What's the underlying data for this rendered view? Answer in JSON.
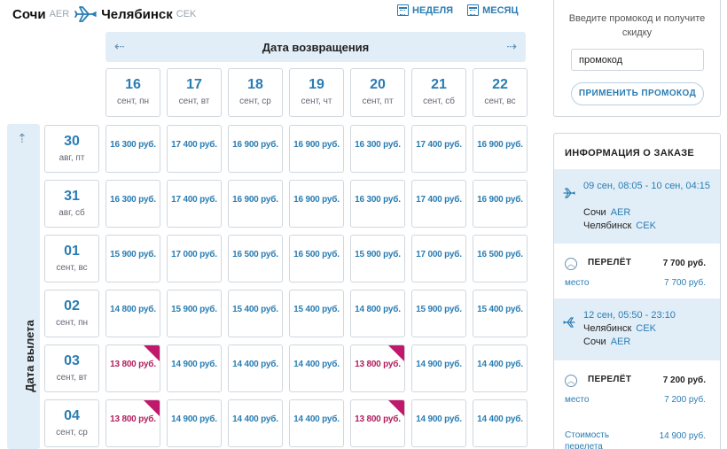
{
  "route": {
    "from_city": "Сочи",
    "from_code": "AER",
    "to_city": "Челябинск",
    "to_code": "CEK"
  },
  "view_switch": {
    "week_label": "НЕДЕЛЯ",
    "month_label": "МЕСЯЦ"
  },
  "return_band": {
    "title": "Дата возвращения",
    "prev_icon": "arrow-left-dotted-icon",
    "next_icon": "arrow-right-dotted-icon"
  },
  "departure_band": {
    "title": "Дата вылета",
    "up_icon": "arrow-up-dotted-icon"
  },
  "return_dates": [
    {
      "day": "16",
      "sub": "сент, пн"
    },
    {
      "day": "17",
      "sub": "сент, вт"
    },
    {
      "day": "18",
      "sub": "сент, ср"
    },
    {
      "day": "19",
      "sub": "сент, чт"
    },
    {
      "day": "20",
      "sub": "сент, пт"
    },
    {
      "day": "21",
      "sub": "сент, сб"
    },
    {
      "day": "22",
      "sub": "сент, вс"
    }
  ],
  "departure_dates": [
    {
      "day": "30",
      "sub": "авг, пт"
    },
    {
      "day": "31",
      "sub": "авг, сб"
    },
    {
      "day": "01",
      "sub": "сент, вс"
    },
    {
      "day": "02",
      "sub": "сент, пн"
    },
    {
      "day": "03",
      "sub": "сент, вт"
    },
    {
      "day": "04",
      "sub": "сент, ср"
    }
  ],
  "prices": [
    [
      "16 300 руб.",
      "17 400 руб.",
      "16 900 руб.",
      "16 900 руб.",
      "16 300 руб.",
      "17 400 руб.",
      "16 900 руб."
    ],
    [
      "16 300 руб.",
      "17 400 руб.",
      "16 900 руб.",
      "16 900 руб.",
      "16 300 руб.",
      "17 400 руб.",
      "16 900 руб."
    ],
    [
      "15 900 руб.",
      "17 000 руб.",
      "16 500 руб.",
      "16 500 руб.",
      "15 900 руб.",
      "17 000 руб.",
      "16 500 руб."
    ],
    [
      "14 800 руб.",
      "15 900 руб.",
      "15 400 руб.",
      "15 400 руб.",
      "14 800 руб.",
      "15 900 руб.",
      "15 400 руб."
    ],
    [
      "13 800 руб.",
      "14 900 руб.",
      "14 400 руб.",
      "14 400 руб.",
      "13 800 руб.",
      "14 900 руб.",
      "14 400 руб."
    ],
    [
      "13 800 руб.",
      "14 900 руб.",
      "14 400 руб.",
      "14 400 руб.",
      "13 800 руб.",
      "14 900 руб.",
      "14 400 руб."
    ]
  ],
  "cheapest": [
    [
      4,
      0
    ],
    [
      4,
      4
    ],
    [
      5,
      0
    ],
    [
      5,
      4
    ]
  ],
  "colors": {
    "accent": "#2a7db3",
    "cheapest_price": "#b0205e",
    "cheapest_marker": "#c0186a",
    "band_bg": "#e2eef7"
  },
  "promo": {
    "text": "Введите промокод и получите скидку",
    "input_value": "промокод",
    "apply_label": "ПРИМЕНИТЬ ПРОМОКОД"
  },
  "order": {
    "title": "ИНФОРМАЦИЯ О ЗАКАЗЕ",
    "outbound": {
      "time": "09 сен, 08:05 - 10 сен, 04:15",
      "from_city": "Сочи",
      "from_code": "AER",
      "to_city": "Челябинск",
      "to_code": "CEK",
      "icon": "plane-depart-icon"
    },
    "outbound_fare": {
      "label": "ПЕРЕЛЁТ",
      "amount": "7 700 руб.",
      "sub_label": "место",
      "sub_amount": "7 700 руб."
    },
    "inbound": {
      "time": "12 сен, 05:50 - 23:10",
      "from_city": "Челябинск",
      "from_code": "CEK",
      "to_city": "Сочи",
      "to_code": "AER",
      "icon": "plane-return-icon"
    },
    "inbound_fare": {
      "label": "ПЕРЕЛЁТ",
      "amount": "7 200 руб.",
      "sub_label": "место",
      "sub_amount": "7 200 руб."
    },
    "total_label": "Стоимость перелета",
    "total_amount": "14 900 руб."
  }
}
